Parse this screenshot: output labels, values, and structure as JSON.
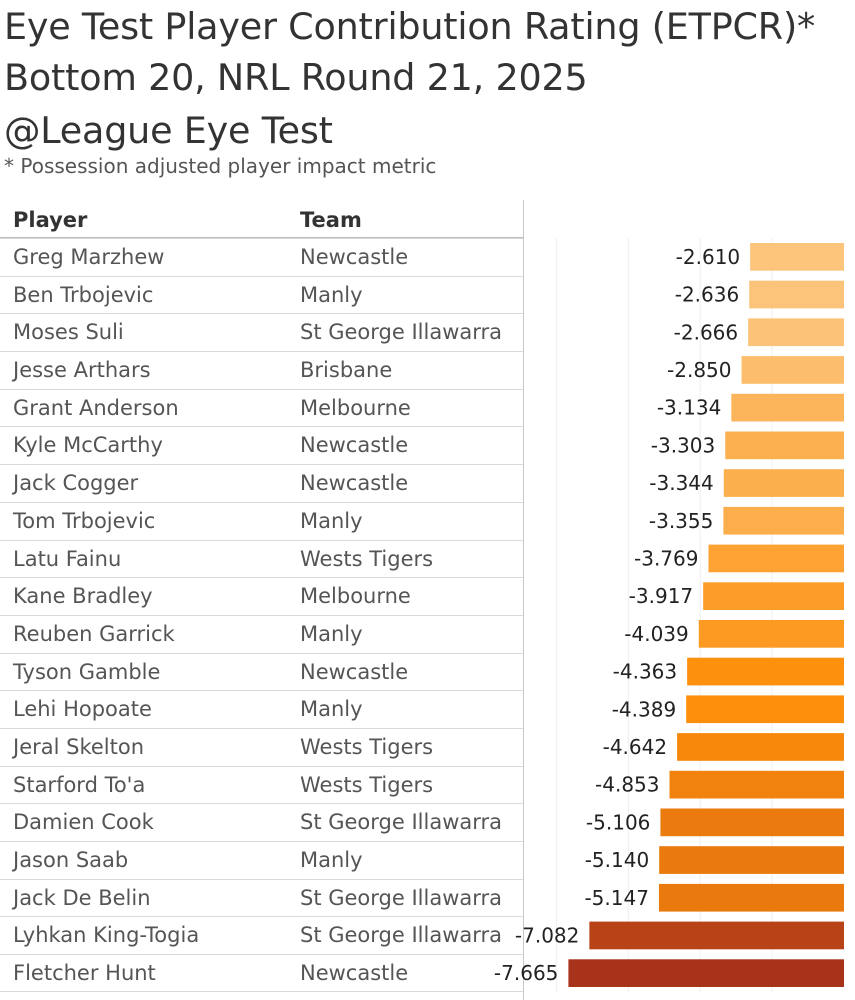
{
  "header": {
    "title_line1": "Eye Test Player Contribution Rating (ETPCR)*",
    "title_line2": "Bottom 20, NRL Round 21, 2025",
    "title_line3": "@League Eye Test",
    "footnote": "* Possession adjusted player impact metric"
  },
  "table": {
    "col_player": "Player",
    "col_team": "Team"
  },
  "chart_data": {
    "type": "bar",
    "orientation": "horizontal",
    "title": "Eye Test Player Contribution Rating (ETPCR)*",
    "categories": [
      "Greg Marzhew",
      "Ben Trbojevic",
      "Moses Suli",
      "Jesse Arthars",
      "Grant Anderson",
      "Kyle McCarthy",
      "Jack Cogger",
      "Tom Trbojevic",
      "Latu Fainu",
      "Kane Bradley",
      "Reuben Garrick",
      "Tyson Gamble",
      "Lehi Hopoate",
      "Jeral Skelton",
      "Starford To'a",
      "Damien Cook",
      "Jason Saab",
      "Jack De Belin",
      "Lyhkan King-Togia",
      "Fletcher Hunt"
    ],
    "teams": [
      "Newcastle",
      "Manly",
      "St George Illawarra",
      "Brisbane",
      "Melbourne",
      "Newcastle",
      "Newcastle",
      "Manly",
      "Wests Tigers",
      "Melbourne",
      "Manly",
      "Newcastle",
      "Manly",
      "Wests Tigers",
      "Wests Tigers",
      "St George Illawarra",
      "Manly",
      "St George Illawarra",
      "St George Illawarra",
      "Newcastle"
    ],
    "values": [
      -2.61,
      -2.636,
      -2.666,
      -2.85,
      -3.134,
      -3.303,
      -3.344,
      -3.355,
      -3.769,
      -3.917,
      -4.039,
      -4.363,
      -4.389,
      -4.642,
      -4.853,
      -5.106,
      -5.14,
      -5.147,
      -7.082,
      -7.665
    ],
    "labels": [
      "-2.610",
      "-2.636",
      "-2.666",
      "-2.850",
      "-3.134",
      "-3.303",
      "-3.344",
      "-3.355",
      "-3.769",
      "-3.917",
      "-4.039",
      "-4.363",
      "-4.389",
      "-4.642",
      "-4.853",
      "-5.106",
      "-5.140",
      "-5.147",
      "-7.082",
      "-7.665"
    ],
    "xlim": [
      -8.9,
      0
    ],
    "colors": {
      "light": "#fcc57c",
      "mid": "#fd8f0b",
      "dark": "#a8311a"
    }
  }
}
